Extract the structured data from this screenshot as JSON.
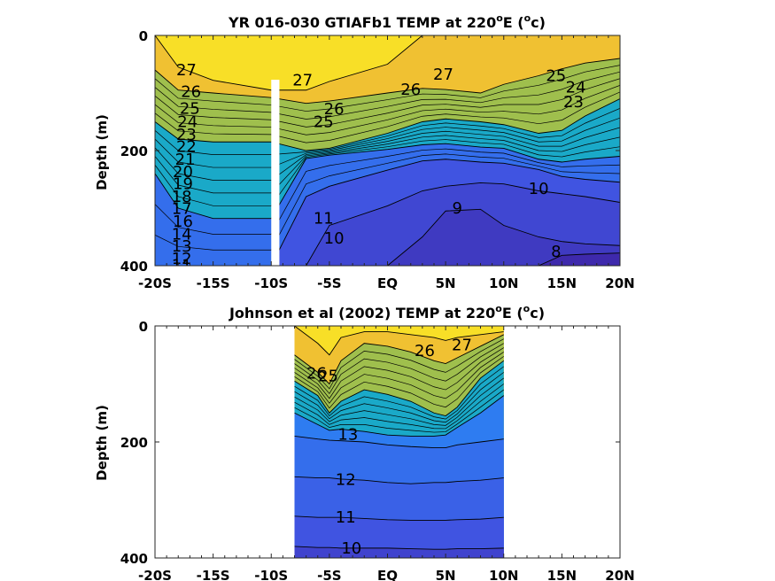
{
  "chart_data": [
    {
      "type": "contour",
      "title": "YR 016-030 GTIAFb1 TEMP at 220",
      "title_sup": "o",
      "title_suffix": "E (",
      "title_sup2": "o",
      "title_end": "c)",
      "ylabel": "Depth (m)",
      "xlim": [
        -20,
        20
      ],
      "ylim": [
        0,
        400
      ],
      "y_reversed": true,
      "x_ticks": [
        -20,
        -15,
        -10,
        -5,
        0,
        5,
        10,
        15,
        20
      ],
      "x_tick_labels": [
        "-20S",
        "-15S",
        "-10S",
        "-5S",
        "EQ",
        "5N",
        "10N",
        "15N",
        "20N"
      ],
      "y_ticks": [
        0,
        200,
        400
      ],
      "y_tick_labels": [
        "0",
        "200",
        "400"
      ],
      "grid": false,
      "colormap": "parula",
      "data_gap": {
        "x": [
          -10,
          -9.3
        ],
        "depth": [
          77,
          400
        ]
      },
      "isotherm_depths_m": {
        "x": [
          -20,
          -18,
          -15,
          -10,
          -7,
          -5,
          0,
          3,
          5,
          8,
          10,
          13,
          15,
          17,
          20
        ],
        "27": [
          0,
          55,
          78,
          95,
          95,
          80,
          50,
          0,
          0,
          0,
          0,
          0,
          0,
          0,
          0
        ],
        "26": [
          60,
          95,
          100,
          108,
          118,
          114,
          100,
          92,
          94,
          100,
          85,
          70,
          58,
          48,
          40
        ],
        "20": [
          150,
          180,
          185,
          185,
          200,
          196,
          170,
          150,
          145,
          150,
          155,
          170,
          165,
          140,
          110
        ],
        "14": [
          240,
          300,
          318,
          318,
          214,
          208,
          198,
          190,
          188,
          194,
          196,
          215,
          220,
          215,
          210
        ],
        "11": [
          400,
          400,
          400,
          400,
          280,
          262,
          234,
          218,
          215,
          220,
          222,
          233,
          245,
          250,
          255
        ],
        "10": [
          400,
          400,
          400,
          400,
          400,
          330,
          296,
          270,
          262,
          256,
          258,
          270,
          275,
          280,
          290
        ],
        "9": [
          400,
          400,
          400,
          400,
          400,
          400,
          400,
          350,
          305,
          302,
          330,
          350,
          358,
          362,
          365
        ],
        "8": [
          400,
          400,
          400,
          400,
          400,
          400,
          400,
          400,
          400,
          400,
          400,
          400,
          382,
          380,
          378
        ]
      },
      "contour_labels": [
        {
          "text": "27",
          "x": -17.3,
          "depth": 60
        },
        {
          "text": "26",
          "x": -16.9,
          "depth": 98
        },
        {
          "text": "25",
          "x": -17.0,
          "depth": 127
        },
        {
          "text": "24",
          "x": -17.2,
          "depth": 150
        },
        {
          "text": "23",
          "x": -17.3,
          "depth": 172
        },
        {
          "text": "22",
          "x": -17.3,
          "depth": 193
        },
        {
          "text": "21",
          "x": -17.4,
          "depth": 215
        },
        {
          "text": "20",
          "x": -17.6,
          "depth": 237
        },
        {
          "text": "19",
          "x": -17.6,
          "depth": 258
        },
        {
          "text": "18",
          "x": -17.7,
          "depth": 280
        },
        {
          "text": "17",
          "x": -17.7,
          "depth": 301
        },
        {
          "text": "16",
          "x": -17.6,
          "depth": 323
        },
        {
          "text": "14",
          "x": -17.7,
          "depth": 345
        },
        {
          "text": "13",
          "x": -17.7,
          "depth": 366
        },
        {
          "text": "12",
          "x": -17.7,
          "depth": 388
        },
        {
          "text": "11",
          "x": -17.7,
          "depth": 399
        },
        {
          "text": "27",
          "x": -7.3,
          "depth": 78
        },
        {
          "text": "26",
          "x": -4.6,
          "depth": 128
        },
        {
          "text": "25",
          "x": -5.5,
          "depth": 150
        },
        {
          "text": "10",
          "x": -4.6,
          "depth": 352
        },
        {
          "text": "11",
          "x": -5.5,
          "depth": 318
        },
        {
          "text": "26",
          "x": 2.0,
          "depth": 94
        },
        {
          "text": "27",
          "x": 4.8,
          "depth": 68
        },
        {
          "text": "25",
          "x": 14.5,
          "depth": 70
        },
        {
          "text": "24",
          "x": 16.2,
          "depth": 90
        },
        {
          "text": "23",
          "x": 16.0,
          "depth": 115
        },
        {
          "text": "10",
          "x": 13.0,
          "depth": 266
        },
        {
          "text": "9",
          "x": 6.0,
          "depth": 300
        },
        {
          "text": "8",
          "x": 14.5,
          "depth": 375
        }
      ]
    },
    {
      "type": "contour",
      "title": "Johnson et al (2002) TEMP at 220",
      "title_sup": "o",
      "title_suffix": "E (",
      "title_sup2": "o",
      "title_end": "c)",
      "ylabel": "Depth (m)",
      "xlim": [
        -20,
        20
      ],
      "ylim": [
        0,
        400
      ],
      "y_reversed": true,
      "x_ticks": [
        -20,
        -15,
        -10,
        -5,
        0,
        5,
        10,
        15,
        20
      ],
      "x_tick_labels": [
        "-20S",
        "-15S",
        "-10S",
        "-5S",
        "EQ",
        "5N",
        "10N",
        "15N",
        "20N"
      ],
      "y_ticks": [
        0,
        200,
        400
      ],
      "y_tick_labels": [
        "0",
        "200",
        "400"
      ],
      "grid": false,
      "colormap": "parula",
      "data_extent_x": [
        -8,
        10
      ],
      "isotherm_depths_m": {
        "x": [
          -8,
          -6,
          -5,
          -4,
          -2,
          0,
          2,
          4,
          5,
          6,
          8,
          10
        ],
        "27": [
          0,
          30,
          50,
          20,
          10,
          10,
          15,
          20,
          25,
          20,
          15,
          10
        ],
        "26": [
          50,
          80,
          100,
          60,
          30,
          35,
          45,
          60,
          65,
          55,
          35,
          15
        ],
        "20": [
          95,
          120,
          150,
          130,
          110,
          118,
          130,
          150,
          155,
          140,
          90,
          60
        ],
        "14": [
          150,
          170,
          180,
          178,
          182,
          188,
          190,
          190,
          188,
          175,
          150,
          120
        ],
        "13": [
          190,
          195,
          197,
          198,
          200,
          205,
          208,
          210,
          210,
          205,
          200,
          195
        ],
        "12": [
          260,
          262,
          262,
          264,
          266,
          270,
          272,
          270,
          270,
          268,
          266,
          262
        ],
        "11": [
          328,
          330,
          330,
          330,
          332,
          334,
          335,
          335,
          335,
          334,
          333,
          330
        ],
        "10": [
          380,
          382,
          382,
          383,
          383,
          383,
          384,
          385,
          385,
          384,
          384,
          383
        ]
      },
      "contour_labels": [
        {
          "text": "26",
          "x": -6.1,
          "depth": 82
        },
        {
          "text": "25",
          "x": -5.1,
          "depth": 86
        },
        {
          "text": "26",
          "x": 3.2,
          "depth": 43
        },
        {
          "text": "27",
          "x": 6.4,
          "depth": 33
        },
        {
          "text": "13",
          "x": -3.4,
          "depth": 187
        },
        {
          "text": "12",
          "x": -3.6,
          "depth": 265
        },
        {
          "text": "11",
          "x": -3.6,
          "depth": 330
        },
        {
          "text": "10",
          "x": -3.1,
          "depth": 383
        }
      ]
    }
  ]
}
